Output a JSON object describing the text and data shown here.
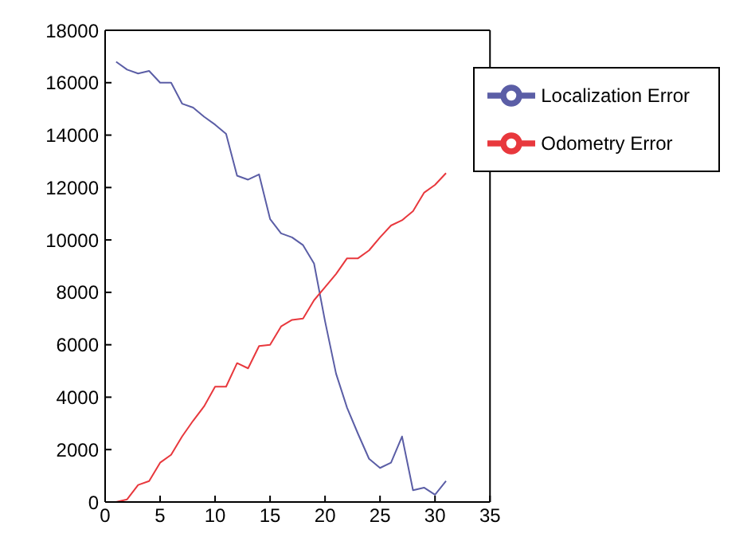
{
  "chart_data": {
    "type": "line",
    "x": [
      1,
      2,
      3,
      4,
      5,
      6,
      7,
      8,
      9,
      10,
      11,
      12,
      13,
      14,
      15,
      16,
      17,
      18,
      19,
      20,
      21,
      22,
      23,
      24,
      25,
      26,
      27,
      28,
      29,
      30,
      31
    ],
    "series": [
      {
        "name": "Localization Error",
        "color": "#5b5ea6",
        "values": [
          16800,
          16500,
          16350,
          16450,
          16000,
          16000,
          15200,
          15050,
          14700,
          14400,
          14050,
          12450,
          12300,
          12500,
          10800,
          10250,
          10100,
          9800,
          9100,
          6900,
          4900,
          3600,
          2600,
          1650,
          1300,
          1500,
          2500,
          450,
          550,
          280,
          800
        ]
      },
      {
        "name": "Odometry Error",
        "color": "#e8383d",
        "values": [
          0,
          100,
          650,
          800,
          1500,
          1800,
          2500,
          3100,
          3650,
          4400,
          4400,
          5300,
          5100,
          5950,
          6000,
          6700,
          6950,
          7000,
          7700,
          8200,
          8700,
          9300,
          9300,
          9600,
          10100,
          10550,
          10750,
          11100,
          11800,
          12100,
          12550
        ]
      }
    ],
    "xlim": [
      0,
      35
    ],
    "xticks": [
      0,
      5,
      10,
      15,
      20,
      25,
      30,
      35
    ],
    "ylim": [
      0,
      18000
    ],
    "yticks": [
      0,
      2000,
      4000,
      6000,
      8000,
      10000,
      12000,
      14000,
      16000,
      18000
    ],
    "grid": false,
    "legend": "top right",
    "marker": "none",
    "line_style": "solid"
  }
}
